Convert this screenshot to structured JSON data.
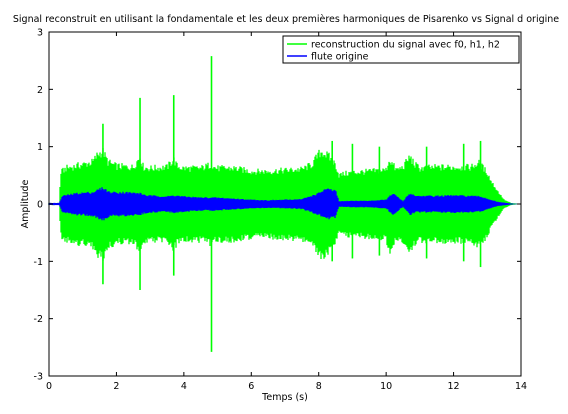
{
  "chart_data": {
    "type": "line",
    "title": "Signal reconstruit en utilisant la fondamentale et les deux premières harmoniques de Pisarenko vs Signal d origine",
    "xlabel": "Temps (s)",
    "ylabel": "Amplitude",
    "xlim": [
      0,
      14
    ],
    "ylim": [
      -3,
      3
    ],
    "xticks": [
      0,
      2,
      4,
      6,
      8,
      10,
      12,
      14
    ],
    "yticks": [
      -3,
      -2,
      -1,
      0,
      1,
      2,
      3
    ],
    "grid": false,
    "legend_position": "top-right",
    "series": [
      {
        "name": "reconstruction du signal avec f0, h1, h2",
        "color": "#00ff00",
        "envelope": {
          "t": [
            0.0,
            0.3,
            0.35,
            0.5,
            1.0,
            1.3,
            1.45,
            1.6,
            1.75,
            2.0,
            2.5,
            2.7,
            2.8,
            3.0,
            3.5,
            3.7,
            3.8,
            4.0,
            4.5,
            4.8,
            4.9,
            5.0,
            5.5,
            6.0,
            6.5,
            7.0,
            7.5,
            7.8,
            8.0,
            8.1,
            8.3,
            8.5,
            8.6,
            8.8,
            9.0,
            9.5,
            10.0,
            10.1,
            10.3,
            10.5,
            10.7,
            10.85,
            11.0,
            11.5,
            12.0,
            12.5,
            12.75,
            13.0,
            13.1,
            13.3,
            13.5,
            13.7,
            14.0
          ],
          "upper": [
            0.02,
            0.02,
            0.6,
            0.68,
            0.75,
            0.8,
            0.95,
            1.0,
            0.8,
            0.72,
            0.7,
            0.9,
            0.7,
            0.68,
            0.7,
            0.85,
            0.72,
            0.68,
            0.68,
            0.75,
            0.7,
            0.68,
            0.68,
            0.62,
            0.62,
            0.64,
            0.66,
            0.75,
            0.95,
            1.0,
            0.9,
            0.75,
            0.55,
            0.58,
            0.6,
            0.62,
            0.65,
            0.85,
            0.65,
            0.7,
            0.9,
            0.75,
            0.68,
            0.7,
            0.7,
            0.7,
            0.78,
            0.6,
            0.45,
            0.25,
            0.08,
            0.02,
            0.0
          ],
          "lower": [
            -0.02,
            -0.02,
            -0.6,
            -0.68,
            -0.75,
            -0.8,
            -0.95,
            -1.0,
            -0.8,
            -0.72,
            -0.7,
            -0.9,
            -0.7,
            -0.68,
            -0.7,
            -0.85,
            -0.72,
            -0.68,
            -0.68,
            -0.75,
            -0.7,
            -0.68,
            -0.68,
            -0.62,
            -0.62,
            -0.64,
            -0.66,
            -0.75,
            -0.95,
            -1.0,
            -0.9,
            -0.75,
            -0.55,
            -0.58,
            -0.6,
            -0.62,
            -0.65,
            -0.95,
            -0.65,
            -0.7,
            -0.9,
            -0.75,
            -0.68,
            -0.7,
            -0.7,
            -0.7,
            -0.78,
            -0.6,
            -0.45,
            -0.25,
            -0.08,
            -0.02,
            0.0
          ]
        },
        "spikes": [
          {
            "t": 1.6,
            "max": 1.4,
            "min": -1.4
          },
          {
            "t": 2.7,
            "max": 1.85,
            "min": -1.5
          },
          {
            "t": 3.7,
            "max": 1.9,
            "min": -1.25
          },
          {
            "t": 4.82,
            "max": 2.58,
            "min": -2.58
          },
          {
            "t": 8.4,
            "max": 1.1,
            "min": -1.0
          },
          {
            "t": 9.0,
            "max": 1.05,
            "min": -0.95
          },
          {
            "t": 9.8,
            "max": 1.0,
            "min": -0.9
          },
          {
            "t": 11.2,
            "max": 1.0,
            "min": -0.95
          },
          {
            "t": 12.3,
            "max": 1.05,
            "min": -1.0
          },
          {
            "t": 12.8,
            "max": 1.1,
            "min": -1.1
          }
        ]
      },
      {
        "name": "flute origine",
        "color": "#0000ff",
        "envelope": {
          "t": [
            0.0,
            0.3,
            0.4,
            0.8,
            1.3,
            1.5,
            1.6,
            1.8,
            2.2,
            2.7,
            2.9,
            3.5,
            3.7,
            4.0,
            4.5,
            4.9,
            5.5,
            6.0,
            6.5,
            7.0,
            7.5,
            8.0,
            8.2,
            8.5,
            8.6,
            9.0,
            9.5,
            10.0,
            10.2,
            10.4,
            10.5,
            10.7,
            10.9,
            11.5,
            12.0,
            12.5,
            12.8,
            13.0,
            13.3,
            13.7,
            14.0
          ],
          "upper": [
            0.02,
            0.02,
            0.15,
            0.2,
            0.22,
            0.28,
            0.3,
            0.22,
            0.22,
            0.2,
            0.16,
            0.14,
            0.16,
            0.14,
            0.12,
            0.12,
            0.1,
            0.08,
            0.07,
            0.08,
            0.09,
            0.2,
            0.28,
            0.25,
            0.05,
            0.06,
            0.06,
            0.08,
            0.2,
            0.1,
            0.05,
            0.2,
            0.15,
            0.15,
            0.16,
            0.15,
            0.14,
            0.1,
            0.04,
            0.01,
            0.0
          ],
          "lower": [
            -0.02,
            -0.02,
            -0.15,
            -0.2,
            -0.22,
            -0.28,
            -0.3,
            -0.22,
            -0.22,
            -0.2,
            -0.16,
            -0.14,
            -0.16,
            -0.14,
            -0.12,
            -0.12,
            -0.1,
            -0.08,
            -0.07,
            -0.08,
            -0.09,
            -0.2,
            -0.28,
            -0.25,
            -0.05,
            -0.06,
            -0.06,
            -0.08,
            -0.2,
            -0.1,
            -0.05,
            -0.2,
            -0.15,
            -0.15,
            -0.16,
            -0.15,
            -0.14,
            -0.1,
            -0.04,
            -0.01,
            0.0
          ]
        }
      }
    ]
  }
}
